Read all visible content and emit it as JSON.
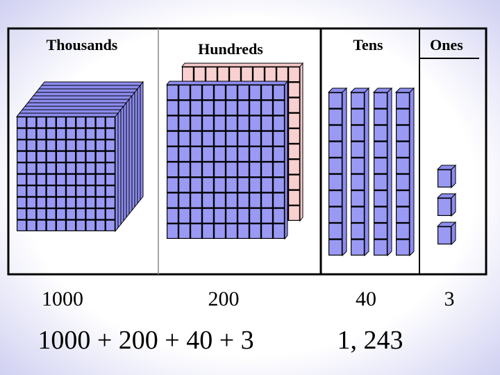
{
  "columns": [
    {
      "header": "Thousands",
      "value": 1000
    },
    {
      "header": "Hundreds",
      "value": 200
    },
    {
      "header": "Tens",
      "value": 40
    },
    {
      "header": "Ones",
      "value": 3
    }
  ],
  "expression": "1000 + 200 + 40 + 3",
  "result": "1, 243"
}
